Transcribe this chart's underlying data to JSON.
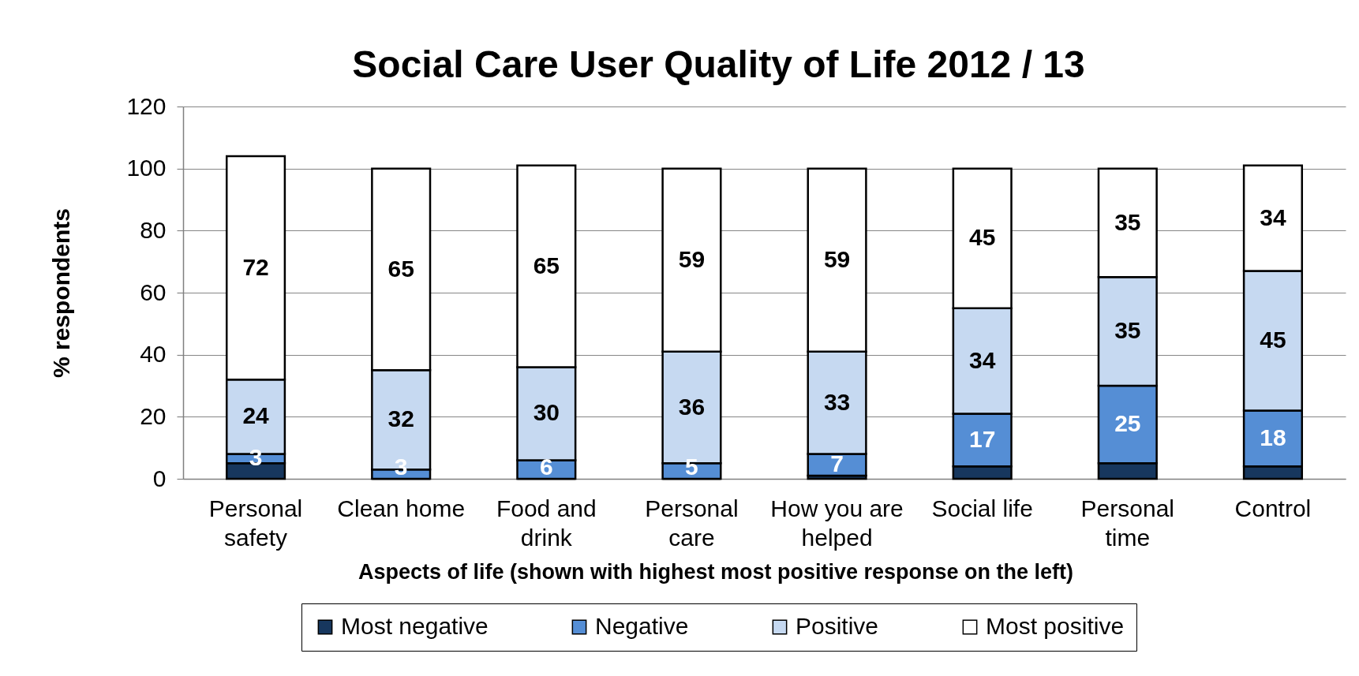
{
  "chart_data": {
    "type": "bar",
    "title": "Social Care User Quality of Life 2012 / 13",
    "xlabel": "Aspects of life (shown with highest most positive response on the left)",
    "ylabel": "% respondents",
    "categories": [
      "Personal safety",
      "Clean home",
      "Food and drink",
      "Personal care",
      "How you are helped",
      "Social life",
      "Personal time",
      "Control"
    ],
    "stacked": true,
    "ylim": [
      0,
      120
    ],
    "yticks": [
      0,
      20,
      40,
      60,
      80,
      100,
      120
    ],
    "grid": "y",
    "legend": "bottom",
    "series": [
      {
        "name": "Most negative",
        "color": "#17375e",
        "values": [
          5,
          0,
          0,
          0,
          1,
          4,
          5,
          4
        ]
      },
      {
        "name": "Negative",
        "color": "#558ed5",
        "values": [
          3,
          3,
          6,
          5,
          7,
          17,
          25,
          18
        ],
        "value_labels": [
          "3",
          "3",
          "6",
          "5",
          "7",
          "17",
          "25",
          "18"
        ]
      },
      {
        "name": "Positive",
        "color": "#c6d9f1",
        "values": [
          24,
          32,
          30,
          36,
          33,
          34,
          35,
          45
        ],
        "value_labels": [
          "24",
          "32",
          "30",
          "36",
          "33",
          "34",
          "35",
          "45"
        ]
      },
      {
        "name": "Most positive",
        "color": "#ffffff",
        "values": [
          72,
          65,
          65,
          59,
          59,
          45,
          35,
          34
        ],
        "value_labels": [
          "72",
          "65",
          "65",
          "59",
          "59",
          "45",
          "35",
          "34"
        ]
      }
    ]
  }
}
